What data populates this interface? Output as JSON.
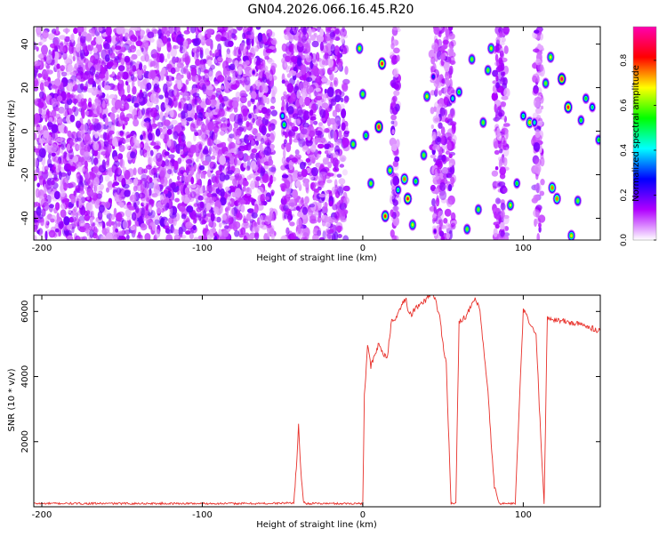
{
  "title": "GN04.2026.066.16.45.R20",
  "colors": {
    "axis": "#000000",
    "snr_line": "#e8302a",
    "background": "#ffffff"
  },
  "chart_data": [
    {
      "type": "heatmap",
      "xlabel": "Height of straight line (km)",
      "ylabel": "Frequency (Hz)",
      "xlim": [
        -205,
        148
      ],
      "ylim": [
        -50,
        48
      ],
      "xticks": [
        -200,
        -100,
        0,
        100
      ],
      "yticks": [
        -40,
        -20,
        0,
        20,
        40
      ],
      "colorbar": {
        "label": "Normalized spectral amplitude",
        "ticks": [
          0.0,
          0.2,
          0.4,
          0.6,
          0.8
        ],
        "range": [
          0,
          0.95
        ],
        "colormap": [
          "#ffffff",
          "#b000ff",
          "#0000ff",
          "#00ffff",
          "#00ff00",
          "#ffff00",
          "#ff0000",
          "#ff00b0"
        ]
      },
      "noise_regions": [
        [
          -205,
          -55
        ],
        [
          -50,
          -10
        ],
        [
          18,
          22
        ],
        [
          43,
          57
        ],
        [
          82,
          90
        ],
        [
          107,
          112
        ]
      ],
      "peaks": [
        {
          "x": -68,
          "y": 27,
          "a": 0.2
        },
        {
          "x": -50,
          "y": 7,
          "a": 0.45
        },
        {
          "x": -49,
          "y": 3,
          "a": 0.55
        },
        {
          "x": -6,
          "y": -6,
          "a": 0.6
        },
        {
          "x": -2,
          "y": 38,
          "a": 0.65
        },
        {
          "x": 0,
          "y": 17,
          "a": 0.6
        },
        {
          "x": 2,
          "y": -2,
          "a": 0.55
        },
        {
          "x": 5,
          "y": -24,
          "a": 0.6
        },
        {
          "x": 10,
          "y": 2,
          "a": 0.9
        },
        {
          "x": 12,
          "y": 31,
          "a": 0.85
        },
        {
          "x": 14,
          "y": -39,
          "a": 0.8
        },
        {
          "x": 17,
          "y": -18,
          "a": 0.65
        },
        {
          "x": 22,
          "y": -27,
          "a": 0.5
        },
        {
          "x": 26,
          "y": -22,
          "a": 0.75
        },
        {
          "x": 28,
          "y": -31,
          "a": 0.85
        },
        {
          "x": 31,
          "y": -43,
          "a": 0.65
        },
        {
          "x": 33,
          "y": -23,
          "a": 0.55
        },
        {
          "x": 38,
          "y": -11,
          "a": 0.6
        },
        {
          "x": 40,
          "y": 16,
          "a": 0.65
        },
        {
          "x": 44,
          "y": 25,
          "a": 0.3
        },
        {
          "x": 45,
          "y": -46,
          "a": 0.2
        },
        {
          "x": 56,
          "y": 15,
          "a": 0.45
        },
        {
          "x": 60,
          "y": 18,
          "a": 0.55
        },
        {
          "x": 65,
          "y": -45,
          "a": 0.6
        },
        {
          "x": 68,
          "y": 33,
          "a": 0.6
        },
        {
          "x": 72,
          "y": -36,
          "a": 0.6
        },
        {
          "x": 75,
          "y": 4,
          "a": 0.6
        },
        {
          "x": 78,
          "y": 28,
          "a": 0.6
        },
        {
          "x": 80,
          "y": 38,
          "a": 0.65
        },
        {
          "x": 92,
          "y": -34,
          "a": 0.65
        },
        {
          "x": 96,
          "y": -24,
          "a": 0.55
        },
        {
          "x": 100,
          "y": 7,
          "a": 0.5
        },
        {
          "x": 104,
          "y": 4,
          "a": 0.7
        },
        {
          "x": 107,
          "y": 4,
          "a": 0.45
        },
        {
          "x": 114,
          "y": 22,
          "a": 0.6
        },
        {
          "x": 117,
          "y": 34,
          "a": 0.65
        },
        {
          "x": 118,
          "y": -26,
          "a": 0.75
        },
        {
          "x": 121,
          "y": -31,
          "a": 0.75
        },
        {
          "x": 124,
          "y": 24,
          "a": 0.9
        },
        {
          "x": 128,
          "y": 11,
          "a": 0.85
        },
        {
          "x": 130,
          "y": -48,
          "a": 0.7
        },
        {
          "x": 134,
          "y": -32,
          "a": 0.6
        },
        {
          "x": 136,
          "y": 5,
          "a": 0.55
        },
        {
          "x": 139,
          "y": 15,
          "a": 0.55
        },
        {
          "x": 143,
          "y": 11,
          "a": 0.5
        },
        {
          "x": 147,
          "y": -4,
          "a": 0.55
        }
      ]
    },
    {
      "type": "line",
      "xlabel": "Height of straight line (km)",
      "ylabel": "SNR (10 * v/v)",
      "xlim": [
        -205,
        148
      ],
      "ylim": [
        0,
        6500
      ],
      "xticks": [
        -200,
        -100,
        0,
        100
      ],
      "yticks": [
        2000,
        4000,
        6000
      ],
      "series": [
        {
          "x": [
            -205,
            -60,
            -43,
            -41,
            -40,
            -39,
            -37,
            -35,
            -30,
            0,
            1,
            3,
            5,
            10,
            15,
            18,
            20,
            23,
            25,
            27,
            28,
            30,
            33,
            36,
            40,
            43,
            45,
            48,
            50,
            52,
            55,
            58,
            60,
            63,
            65,
            68,
            70,
            73,
            75,
            78,
            80,
            82,
            85,
            90,
            95,
            100,
            102,
            105,
            108,
            110,
            113,
            115,
            120,
            125,
            130,
            135,
            140,
            145,
            148
          ],
          "values": [
            100,
            100,
            120,
            1500,
            2500,
            1400,
            150,
            100,
            100,
            100,
            3400,
            5000,
            4300,
            5000,
            4500,
            5700,
            5800,
            6000,
            6300,
            6400,
            6000,
            5900,
            6100,
            6200,
            6400,
            6600,
            6400,
            5800,
            5000,
            4400,
            100,
            100,
            5700,
            5800,
            5900,
            6200,
            6400,
            6000,
            5000,
            3500,
            2000,
            600,
            100,
            100,
            100,
            6000,
            5900,
            5500,
            5300,
            3100,
            100,
            5800,
            5750,
            5700,
            5650,
            5600,
            5550,
            5450,
            5400
          ]
        }
      ]
    }
  ]
}
